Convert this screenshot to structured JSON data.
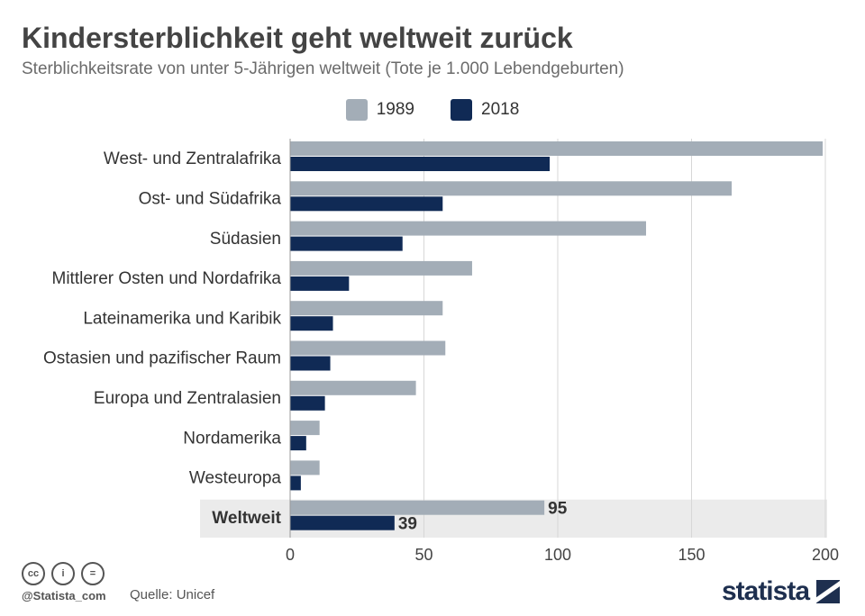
{
  "title": "Kindersterblichkeit geht weltweit zurück",
  "subtitle": "Sterblichkeitsrate von unter 5-Jährigen weltweit (Tote je 1.000 Lebendgeburten)",
  "legend": [
    {
      "label": "1989",
      "color": "#a3adb7"
    },
    {
      "label": "2018",
      "color": "#102a55"
    }
  ],
  "chart_data": {
    "type": "bar",
    "orientation": "horizontal",
    "categories": [
      "West- und Zentralafrika",
      "Ost- und Südafrika",
      "Südasien",
      "Mittlerer Osten und Nordafrika",
      "Lateinamerika und Karibik",
      "Ostasien und pazifischer Raum",
      "Europa und Zentralasien",
      "Nordamerika",
      "Westeuropa",
      "Weltweit"
    ],
    "series": [
      {
        "name": "1989",
        "color": "#a3adb7",
        "values": [
          199,
          165,
          133,
          68,
          57,
          58,
          47,
          11,
          11,
          95
        ]
      },
      {
        "name": "2018",
        "color": "#102a55",
        "values": [
          97,
          57,
          42,
          22,
          16,
          15,
          13,
          6,
          4,
          39
        ]
      }
    ],
    "highlight_category": "Weltweit",
    "highlight_labels": [
      "95",
      "39"
    ],
    "xlim": [
      0,
      200
    ],
    "xticks": [
      "0",
      "50",
      "100",
      "150",
      "200"
    ],
    "grid": true,
    "legend_position": "top-center"
  },
  "footer": {
    "cc_icons": [
      "cc-icon",
      "by-icon",
      "nd-icon"
    ],
    "cc_glyphs": [
      "cc",
      "i",
      "="
    ],
    "handle": "@Statista_com",
    "source": "Quelle: Unicef",
    "brand": "statista"
  }
}
